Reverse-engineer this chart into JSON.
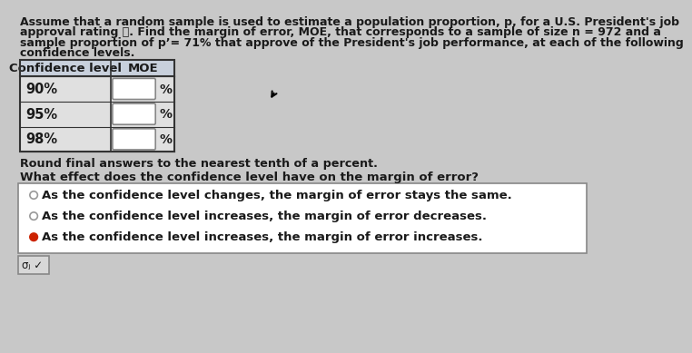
{
  "bg_color": "#c8c8c8",
  "text_color": "#1a1a1a",
  "title_lines": [
    "Assume that a random sample is used to estimate a population proportion, p, for a U.S. President's job",
    "approval rating. Find the margin of error, MOE, that corresponds to a sample of size n = 972 and a",
    "sample proportion of p'= 71% that approve of the President's job performance, at each of the following",
    "confidence levels."
  ],
  "table_header_bg": "#c8d8e8",
  "table_row_bg": "#e8e8e8",
  "table_border_color": "#333333",
  "table_headers": [
    "Confidence level",
    "MOE"
  ],
  "table_rows": [
    "90%",
    "95%",
    "98%"
  ],
  "input_box_color": "#ffffff",
  "round_note": "Round final answers to the nearest tenth of a percent.",
  "question": "What effect does the confidence level have on the margin of error?",
  "options": [
    "As the confidence level changes, the margin of error stays the same.",
    "As the confidence level increases, the margin of error decreases.",
    "As the confidence level increases, the margin of error increases."
  ],
  "selected_option": 2,
  "radio_selected_color": "#cc2200",
  "radio_unselected_color": "#888888",
  "options_box_bg": "#ffffff",
  "options_box_border": "#888888",
  "footer_box_bg": "#d8d8d8",
  "footer_box_border": "#888888",
  "footer_text": "σⱼ ✓"
}
